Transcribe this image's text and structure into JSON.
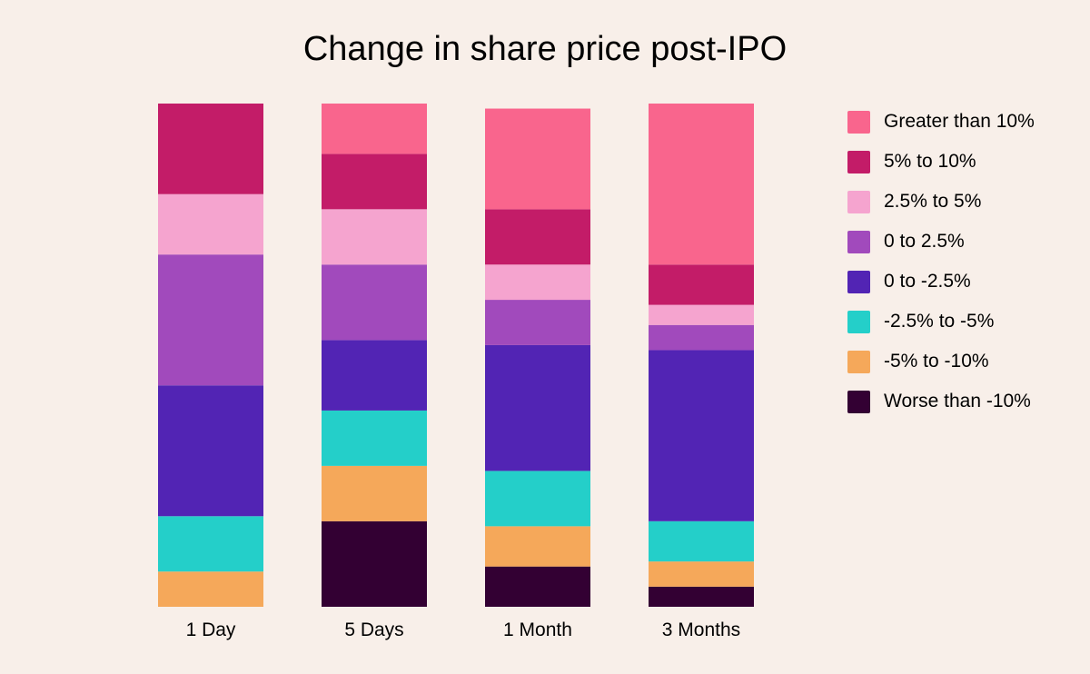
{
  "chart_data": {
    "type": "bar",
    "stacked": true,
    "normalized_to": 100,
    "title": "Change in share price post-IPO",
    "xlabel": "",
    "ylabel": "",
    "ylim": [
      0,
      100
    ],
    "y_axis_shown": false,
    "grid": false,
    "legend_position": "right",
    "categories": [
      "1 Day",
      "5 Days",
      "1 Month",
      "3 Months"
    ],
    "series": [
      {
        "name": "Greater than 10%",
        "color": "#f9658d",
        "values": [
          0,
          10,
          20,
          32
        ]
      },
      {
        "name": "5% to 10%",
        "color": "#c31c68",
        "values": [
          18,
          11,
          11,
          8
        ]
      },
      {
        "name": "2.5% to 5%",
        "color": "#f5a4cf",
        "values": [
          12,
          11,
          7,
          4
        ]
      },
      {
        "name": "0 to 2.5%",
        "color": "#a14abc",
        "values": [
          26,
          15,
          9,
          5
        ]
      },
      {
        "name": "0 to -2.5%",
        "color": "#5224b4",
        "values": [
          26,
          14,
          25,
          34
        ]
      },
      {
        "name": "-2.5% to -5%",
        "color": "#24cfc9",
        "values": [
          11,
          11,
          11,
          8
        ]
      },
      {
        "name": "-5% to -10%",
        "color": "#f5a85a",
        "values": [
          7,
          11,
          8,
          5
        ]
      },
      {
        "name": "Worse than -10%",
        "color": "#330033",
        "values": [
          0,
          17,
          8,
          4
        ]
      }
    ]
  }
}
